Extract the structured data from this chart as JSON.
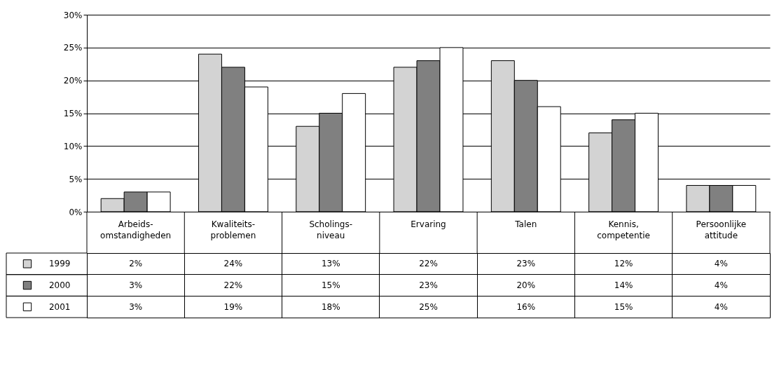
{
  "chart_data": {
    "type": "bar",
    "categories": [
      "Arbeids- omstandigheden",
      "Kwaliteits- problemen",
      "Scholings- niveau",
      "Ervaring",
      "Talen",
      "Kennis, competentie",
      "Persoonlijke attitude"
    ],
    "series": [
      {
        "name": "1999",
        "color": "#d3d3d3",
        "values": [
          2,
          24,
          13,
          22,
          23,
          12,
          4
        ],
        "value_labels": [
          "2%",
          "24%",
          "13%",
          "22%",
          "23%",
          "12%",
          "4%"
        ]
      },
      {
        "name": "2000",
        "color": "#808080",
        "values": [
          3,
          22,
          15,
          23,
          20,
          14,
          4
        ],
        "value_labels": [
          "3%",
          "22%",
          "15%",
          "23%",
          "20%",
          "14%",
          "4%"
        ]
      },
      {
        "name": "2001",
        "color": "#ffffff",
        "values": [
          3,
          19,
          18,
          25,
          16,
          15,
          4
        ],
        "value_labels": [
          "3%",
          "19%",
          "18%",
          "25%",
          "16%",
          "15%",
          "4%"
        ]
      }
    ],
    "ylim": [
      0,
      30
    ],
    "yticks": [
      {
        "value": 0,
        "label": "0%"
      },
      {
        "value": 5,
        "label": "5%"
      },
      {
        "value": 10,
        "label": "10%"
      },
      {
        "value": 15,
        "label": "15%"
      },
      {
        "value": 20,
        "label": "20%"
      },
      {
        "value": 25,
        "label": "25%"
      },
      {
        "value": 30,
        "label": "30%"
      }
    ],
    "grid": "y",
    "legend": "bottom left"
  }
}
